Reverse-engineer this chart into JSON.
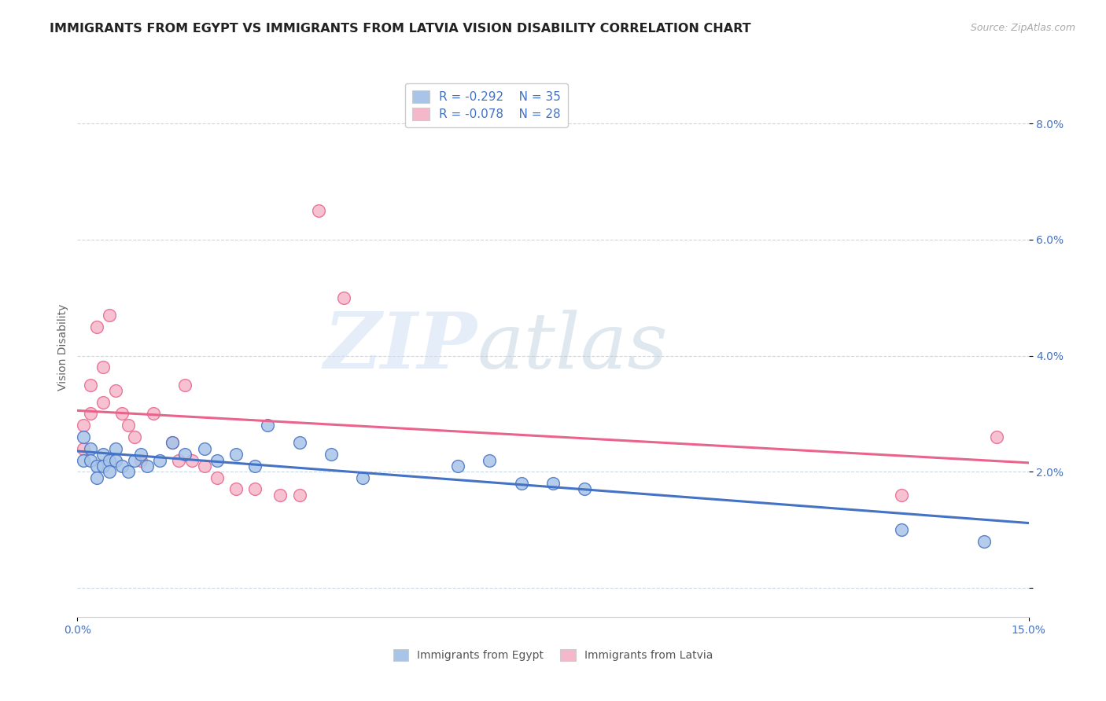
{
  "title": "IMMIGRANTS FROM EGYPT VS IMMIGRANTS FROM LATVIA VISION DISABILITY CORRELATION CHART",
  "source": "Source: ZipAtlas.com",
  "ylabel": "Vision Disability",
  "xlim": [
    0.0,
    0.15
  ],
  "ylim": [
    -0.005,
    0.088
  ],
  "yticks": [
    0.0,
    0.02,
    0.04,
    0.06,
    0.08
  ],
  "ytick_labels": [
    "",
    "2.0%",
    "4.0%",
    "6.0%",
    "8.0%"
  ],
  "color_egypt": "#a8c4e8",
  "color_latvia": "#f5b8cb",
  "line_color_egypt": "#4472c4",
  "line_color_latvia": "#e8648c",
  "tick_color": "#4472c4",
  "background_color": "#ffffff",
  "grid_color": "#c8d8e8",
  "watermark_zip": "ZIP",
  "watermark_atlas": "atlas",
  "r_egypt": -0.292,
  "n_egypt": 35,
  "r_latvia": -0.078,
  "n_latvia": 28,
  "egypt_x": [
    0.001,
    0.001,
    0.002,
    0.002,
    0.003,
    0.003,
    0.004,
    0.004,
    0.005,
    0.005,
    0.006,
    0.006,
    0.007,
    0.008,
    0.009,
    0.01,
    0.011,
    0.013,
    0.015,
    0.017,
    0.02,
    0.022,
    0.025,
    0.028,
    0.03,
    0.035,
    0.04,
    0.045,
    0.06,
    0.065,
    0.07,
    0.075,
    0.08,
    0.13,
    0.143
  ],
  "egypt_y": [
    0.026,
    0.022,
    0.024,
    0.022,
    0.021,
    0.019,
    0.023,
    0.021,
    0.022,
    0.02,
    0.024,
    0.022,
    0.021,
    0.02,
    0.022,
    0.023,
    0.021,
    0.022,
    0.025,
    0.023,
    0.024,
    0.022,
    0.023,
    0.021,
    0.028,
    0.025,
    0.023,
    0.019,
    0.021,
    0.022,
    0.018,
    0.018,
    0.017,
    0.01,
    0.008
  ],
  "latvia_x": [
    0.001,
    0.001,
    0.002,
    0.002,
    0.003,
    0.004,
    0.004,
    0.005,
    0.006,
    0.007,
    0.008,
    0.009,
    0.01,
    0.012,
    0.015,
    0.016,
    0.017,
    0.018,
    0.02,
    0.022,
    0.025,
    0.028,
    0.032,
    0.035,
    0.038,
    0.042,
    0.13,
    0.145
  ],
  "latvia_y": [
    0.028,
    0.024,
    0.035,
    0.03,
    0.045,
    0.038,
    0.032,
    0.047,
    0.034,
    0.03,
    0.028,
    0.026,
    0.022,
    0.03,
    0.025,
    0.022,
    0.035,
    0.022,
    0.021,
    0.019,
    0.017,
    0.017,
    0.016,
    0.016,
    0.065,
    0.05,
    0.016,
    0.026
  ],
  "title_fontsize": 11.5,
  "axis_label_fontsize": 10,
  "tick_fontsize": 10,
  "legend_fontsize": 11,
  "marker_size": 130
}
